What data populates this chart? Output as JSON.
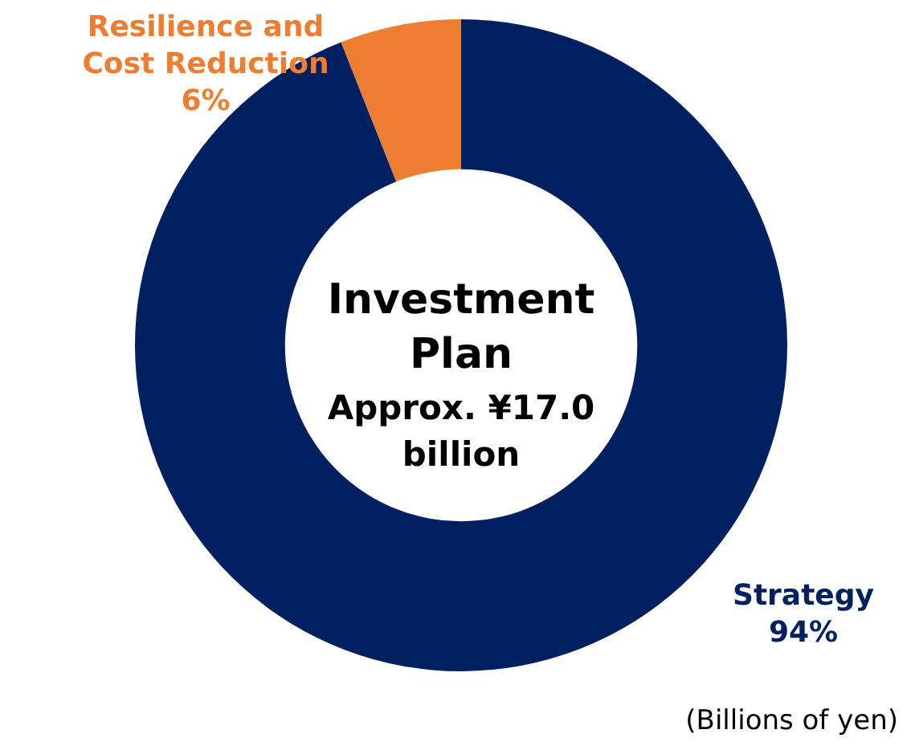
{
  "chart_data": {
    "type": "donut",
    "title": "Investment Plan",
    "subtitle": "Approx. ¥17.0 billion",
    "categories": [
      "Strategy",
      "Resilience and Cost Reduction"
    ],
    "values": [
      94,
      6
    ],
    "colors": [
      "#002060",
      "#ed7d31"
    ],
    "value_labels": [
      "94%",
      "6%"
    ],
    "legend": false,
    "annotations": [
      "(Billions of yen)"
    ]
  }
}
